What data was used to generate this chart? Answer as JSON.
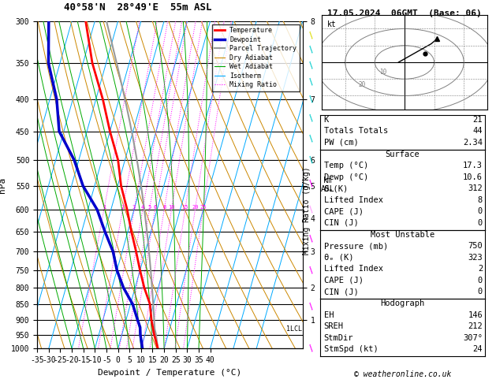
{
  "title_left": "40°58'N  28°49'E  55m ASL",
  "title_right": "17.05.2024  06GMT  (Base: 06)",
  "xlabel": "Dewpoint / Temperature (°C)",
  "ylabel_left": "hPa",
  "xmin": -35,
  "xmax": 40,
  "temp_color": "#ff0000",
  "dewpoint_color": "#0000cc",
  "parcel_color": "#999999",
  "dry_adiabat_color": "#cc8800",
  "wet_adiabat_color": "#00aa00",
  "isotherm_color": "#00aaff",
  "mixing_ratio_color": "#ff00ff",
  "background_color": "#ffffff",
  "legend_items": [
    "Temperature",
    "Dewpoint",
    "Parcel Trajectory",
    "Dry Adiabat",
    "Wet Adiabat",
    "Isotherm",
    "Mixing Ratio"
  ],
  "legend_colors": [
    "#ff0000",
    "#0000cc",
    "#999999",
    "#cc8800",
    "#00aa00",
    "#00aaff",
    "#ff00ff"
  ],
  "legend_styles": [
    "-",
    "-",
    "-",
    "-",
    "-",
    "-",
    ":"
  ],
  "legend_widths": [
    2,
    2.5,
    1.5,
    0.8,
    0.8,
    0.8,
    0.8
  ],
  "mixing_ratio_values": [
    1,
    2,
    3,
    4,
    5,
    6,
    8,
    10,
    15,
    20,
    25
  ],
  "info_K": 21,
  "info_TT": 44,
  "info_PW": "2.34",
  "surface_temp": "17.3",
  "surface_dewp": "10.6",
  "surface_theta": "312",
  "surface_li": "8",
  "surface_cape": "0",
  "surface_cin": "0",
  "mu_pressure": "750",
  "mu_theta": "323",
  "mu_li": "2",
  "mu_cape": "0",
  "mu_cin": "0",
  "hodo_eh": "146",
  "hodo_sreh": "212",
  "hodo_stmdir": "307°",
  "hodo_stmspd": "24",
  "copyright": "© weatheronline.co.uk",
  "sounding_p": [
    1000,
    950,
    925,
    900,
    850,
    800,
    750,
    700,
    650,
    600,
    550,
    500,
    450,
    400,
    350,
    300
  ],
  "sounding_T": [
    17.3,
    14.0,
    12.5,
    11.0,
    8.5,
    4.0,
    0.0,
    -4.0,
    -8.5,
    -13.0,
    -18.5,
    -23.0,
    -30.0,
    -37.0,
    -46.0,
    -54.0
  ],
  "sounding_Td": [
    10.6,
    8.0,
    7.0,
    5.0,
    1.0,
    -5.0,
    -10.0,
    -14.0,
    -20.0,
    -26.0,
    -35.0,
    -42.0,
    -52.0,
    -57.0,
    -65.0,
    -70.0
  ]
}
